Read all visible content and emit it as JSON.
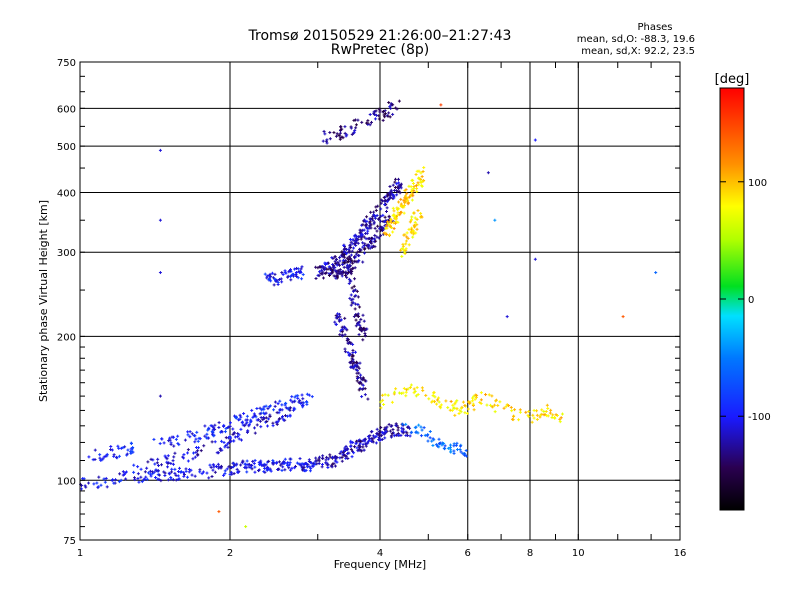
{
  "chart_data": {
    "type": "scatter",
    "title": "Tromsø 20150529 21:26:00–21:27:43",
    "subtitle": "RwPretec (8p)",
    "xlabel": "Frequency [MHz]",
    "ylabel": "Stationary phase Virtual Height [km]",
    "x_scale": "log",
    "y_scale": "log",
    "xlim": [
      1,
      16
    ],
    "ylim": [
      75,
      750
    ],
    "x_ticks": [
      1,
      2,
      4,
      6,
      8,
      10,
      16
    ],
    "x_tick_labels": [
      "1",
      "2",
      "4",
      "6",
      "8",
      "10",
      "16"
    ],
    "y_ticks": [
      75,
      100,
      200,
      300,
      400,
      500,
      600,
      750
    ],
    "y_tick_labels": [
      "75",
      "100",
      "200",
      "300",
      "400",
      "500",
      "600",
      "750"
    ],
    "grid": true,
    "info": {
      "heading": "Phases",
      "line_o": "mean, sd,O: -88.3, 19.6",
      "line_x": "mean, sd,X:  92.2, 23.5"
    },
    "colorbar": {
      "label": "[deg]",
      "range": [
        -180,
        180
      ],
      "ticks": [
        -100,
        0,
        100
      ],
      "tick_labels": [
        "-100",
        "0",
        "100"
      ]
    },
    "traces": [
      {
        "f": [
          1.0,
          1.2,
          1.4,
          1.6,
          1.8,
          2.0,
          2.2,
          2.4,
          2.6,
          2.8,
          2.95
        ],
        "h": [
          98,
          101,
          102,
          103,
          104,
          106,
          107,
          107,
          108,
          108,
          107
        ],
        "phase": -105,
        "count": 260
      },
      {
        "f": [
          1.0,
          1.2,
          1.5,
          1.8,
          2.0,
          2.3,
          2.6,
          2.9
        ],
        "h": [
          112,
          115,
          120,
          126,
          131,
          138,
          144,
          148
        ],
        "phase": -95,
        "count": 190
      },
      {
        "f": [
          1.3,
          1.6,
          1.9,
          2.1,
          2.4,
          2.7
        ],
        "h": [
          106,
          112,
          118,
          126,
          134,
          140
        ],
        "phase": -112,
        "count": 120
      },
      {
        "f": [
          2.35,
          2.5,
          2.65,
          2.8
        ],
        "h": [
          262,
          264,
          268,
          272
        ],
        "phase": -100,
        "count": 60
      },
      {
        "f": [
          3.0,
          3.2,
          3.4,
          3.6,
          3.8,
          4.0,
          4.2,
          4.4
        ],
        "h": [
          270,
          282,
          300,
          320,
          345,
          370,
          395,
          420
        ],
        "phase": -122,
        "count": 230
      },
      {
        "f": [
          3.2,
          3.4,
          3.6,
          3.8,
          4.0,
          4.2
        ],
        "h": [
          268,
          278,
          292,
          310,
          332,
          355
        ],
        "phase": -130,
        "count": 140
      },
      {
        "f": [
          3.1,
          3.3,
          3.5,
          3.7,
          3.9,
          4.1,
          4.3
        ],
        "h": [
          520,
          528,
          545,
          560,
          575,
          590,
          610
        ],
        "phase": -128,
        "count": 80
      },
      {
        "f": [
          3.0,
          3.2,
          3.4,
          3.6,
          3.8,
          4.0,
          4.3,
          4.6
        ],
        "h": [
          108,
          110,
          114,
          118,
          122,
          125,
          128,
          127
        ],
        "phase": -120,
        "count": 190
      },
      {
        "f": [
          3.3,
          3.45,
          3.6,
          3.75
        ],
        "h": [
          220,
          190,
          170,
          150
        ],
        "phase": -125,
        "count": 110
      },
      {
        "f": [
          3.4,
          3.55,
          3.7
        ],
        "h": [
          300,
          240,
          200
        ],
        "phase": -132,
        "count": 90
      },
      {
        "f": [
          4.1,
          4.3,
          4.5,
          4.7,
          4.9
        ],
        "h": [
          330,
          360,
          385,
          410,
          440
        ],
        "phase": 95,
        "count": 110
      },
      {
        "f": [
          4.4,
          4.6,
          4.8
        ],
        "h": [
          300,
          330,
          360
        ],
        "phase": 90,
        "count": 50
      },
      {
        "f": [
          4.0,
          4.6,
          5.2,
          5.8,
          6.4,
          7.0,
          7.8,
          8.6,
          9.4
        ],
        "h": [
          145,
          155,
          148,
          140,
          150,
          142,
          135,
          140,
          132
        ],
        "phase": 90,
        "count": 150
      },
      {
        "f": [
          4.5,
          4.8,
          5.1,
          5.4,
          5.7,
          6.0
        ],
        "h": [
          135,
          126,
          121,
          118,
          116,
          115
        ],
        "phase": -60,
        "count": 60
      }
    ],
    "scattered": [
      {
        "f": 1.45,
        "h": 490,
        "phase": -110
      },
      {
        "f": 1.45,
        "h": 350,
        "phase": -110
      },
      {
        "f": 1.45,
        "h": 272,
        "phase": -110
      },
      {
        "f": 1.45,
        "h": 150,
        "phase": -120
      },
      {
        "f": 8.2,
        "h": 515,
        "phase": -100
      },
      {
        "f": 8.2,
        "h": 290,
        "phase": -110
      },
      {
        "f": 14.3,
        "h": 272,
        "phase": -60
      },
      {
        "f": 12.3,
        "h": 220,
        "phase": 140
      },
      {
        "f": 6.6,
        "h": 440,
        "phase": -120
      },
      {
        "f": 7.2,
        "h": 220,
        "phase": -110
      },
      {
        "f": 6.8,
        "h": 350,
        "phase": -40
      },
      {
        "f": 5.3,
        "h": 610,
        "phase": 150
      },
      {
        "f": 2.15,
        "h": 80,
        "phase": 60
      },
      {
        "f": 1.9,
        "h": 86,
        "phase": 140
      }
    ]
  }
}
